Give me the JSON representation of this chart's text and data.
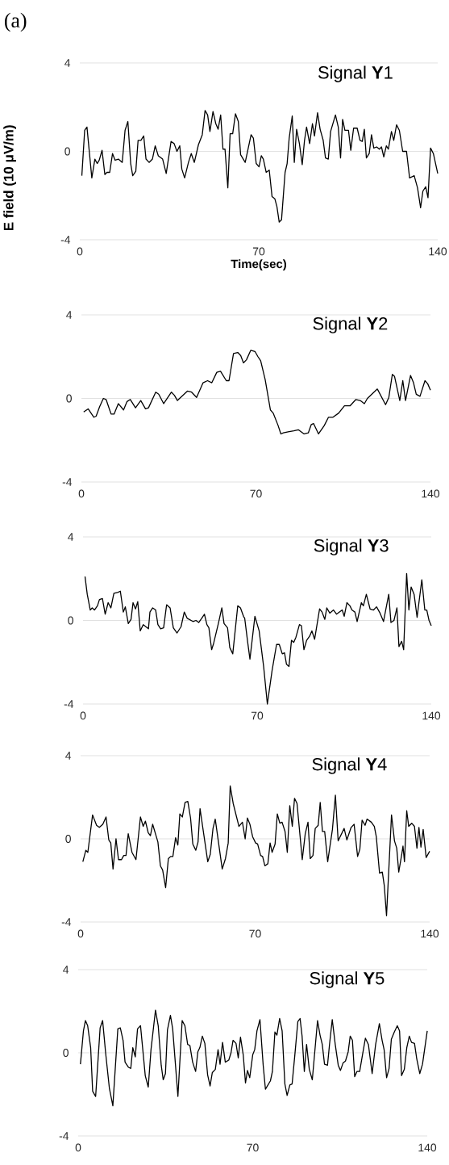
{
  "chart_data": [
    {
      "type": "line",
      "title": "Signal **Y**1",
      "xlabel": "Time(sec)",
      "ylabel": "E field (10 μV/m)",
      "annotations": [
        "(a)"
      ],
      "color": "#000000",
      "xlim": [
        0,
        140
      ],
      "ylim": [
        -4,
        4
      ],
      "xticks": [
        0,
        70,
        140
      ],
      "yticks": [
        -4,
        0,
        4
      ],
      "grid": "y",
      "x": [
        0.8,
        1.9,
        2.8,
        4.7,
        5.9,
        6.8,
        7.6,
        8.7,
        9.8,
        10.6,
        11.7,
        12.8,
        13.8,
        15.1,
        16.6,
        17.7,
        18.8,
        19.9,
        20.7,
        21.9,
        22.8,
        23.9,
        25,
        25.9,
        27.1,
        28.4,
        29.5,
        30.7,
        32.4,
        33.8,
        35.7,
        36.9,
        38,
        39.1,
        39.9,
        41,
        42.5,
        43.6,
        44.8,
        46.4,
        47.9,
        49,
        50,
        50.9,
        52.1,
        53.2,
        54.1,
        55.1,
        56,
        56.8,
        57.9,
        58.8,
        59.8,
        60.9,
        62,
        62.9,
        64.7,
        67,
        67.9,
        69,
        70.1,
        71,
        71.8,
        72.9,
        74.1,
        75.2,
        76.3,
        77.1,
        78,
        78.9,
        80.3,
        81.1,
        81.9,
        83.1,
        83.9,
        84.8,
        85.9,
        87,
        87.9,
        88.7,
        89.9,
        91,
        91.8,
        93,
        94,
        95.2,
        96.1,
        97.2,
        98.1,
        100,
        101.1,
        102,
        102.8,
        103.7,
        105.1,
        106,
        107.1,
        108.5,
        109.6,
        110.5,
        111.3,
        112.1,
        113.2,
        114.1,
        115,
        116.1,
        117.2,
        118,
        118.9,
        119.9,
        120.7,
        121.9,
        122.8,
        123.9,
        125,
        126.3,
        127.8,
        129,
        130.8,
        132.1,
        133.3,
        134.2,
        135.3,
        136.2,
        137.2,
        138.3,
        140
      ],
      "values": [
        -1.1,
        0.95,
        1.1,
        -1.2,
        -0.35,
        -0.55,
        -0.4,
        0.05,
        -1.05,
        -0.95,
        -0.95,
        -0.1,
        -0.4,
        -0.35,
        -0.5,
        0.95,
        1.35,
        -0.55,
        -1.1,
        -0.9,
        0.5,
        0.5,
        0.7,
        -0.35,
        -0.5,
        -0.35,
        0.25,
        -0.2,
        -0.35,
        -1.0,
        0.45,
        0.35,
        0,
        0.25,
        -0.8,
        -1.2,
        -0.5,
        -0.1,
        -0.5,
        0.3,
        0.75,
        1.85,
        1.65,
        0.9,
        1.8,
        1.25,
        1.0,
        1.65,
        0.1,
        0.1,
        -1.65,
        0.8,
        0.8,
        1.7,
        1.35,
        -0.15,
        -0.5,
        0.75,
        0.6,
        -0.55,
        -0.7,
        -0.2,
        -0.35,
        -0.95,
        -0.85,
        -2.05,
        -2.15,
        -2.5,
        -3.2,
        -3.1,
        -0.95,
        -0.55,
        0.6,
        1.6,
        -0.5,
        1.0,
        0.35,
        -0.6,
        0.5,
        1.1,
        0.35,
        1.25,
        0.7,
        1.75,
        1.0,
        0.5,
        -0.3,
        -0.35,
        0.9,
        1.65,
        1.1,
        -0.3,
        1.45,
        0.95,
        0.95,
        0.05,
        1.05,
        1.05,
        0.5,
        0.45,
        1.0,
        -0.3,
        -0.1,
        0.75,
        0.15,
        0.2,
        0.1,
        0.2,
        -0.25,
        0.25,
        0.1,
        0.9,
        0.5,
        1.2,
        0.95,
        0,
        0,
        -1.2,
        -1.1,
        -1.65,
        -2.55,
        -1.8,
        -1.6,
        -2.1,
        0.15,
        -0.1,
        -1.0
      ]
    },
    {
      "type": "line",
      "title": "Signal **Y**2",
      "color": "#000000",
      "xlim": [
        0,
        140
      ],
      "ylim": [
        -4,
        4
      ],
      "xticks": [
        0,
        70,
        140
      ],
      "yticks": [
        -4,
        0,
        4
      ],
      "grid": "y",
      "x": [
        0.9,
        2.7,
        5,
        5.9,
        7.3,
        8.8,
        9.9,
        11.9,
        13.1,
        14.8,
        16.9,
        18.3,
        19.6,
        21.7,
        23.8,
        25.7,
        26.9,
        29.8,
        31,
        33,
        36.1,
        37.3,
        38.5,
        42.5,
        44.2,
        46.2,
        48.8,
        50.6,
        52.3,
        54.3,
        55.8,
        58.1,
        59.2,
        61,
        62.7,
        63.9,
        65,
        66.2,
        67.9,
        69.6,
        70.8,
        71.9,
        73.7,
        75.8,
        76.9,
        78.9,
        80,
        81,
        82.9,
        85.2,
        87,
        89.3,
        91,
        92.2,
        93.1,
        95.1,
        97.4,
        99.1,
        100.9,
        103.2,
        105.5,
        107.8,
        110.1,
        111.8,
        113.5,
        114.7,
        118.7,
        122,
        123.3,
        124.7,
        125.6,
        127.7,
        128.9,
        130,
        132,
        133.2,
        134.3,
        135.8,
        137.8,
        138.9,
        140
      ],
      "values": [
        -0.65,
        -0.5,
        -0.9,
        -0.85,
        -0.4,
        0,
        -0.05,
        -0.75,
        -0.75,
        -0.25,
        -0.55,
        -0.15,
        -0.05,
        -0.45,
        -0.1,
        -0.5,
        -0.45,
        0.3,
        0.2,
        -0.25,
        0.3,
        0.15,
        -0.1,
        0.35,
        0.3,
        0.05,
        0.75,
        0.85,
        0.75,
        1.25,
        1.3,
        0.85,
        0.85,
        2.15,
        2.2,
        2.05,
        1.7,
        1.85,
        2.3,
        2.25,
        2.0,
        1.8,
        0.9,
        -0.55,
        -0.7,
        -1.3,
        -1.7,
        -1.65,
        -1.6,
        -1.55,
        -1.5,
        -1.7,
        -1.65,
        -1.25,
        -1.2,
        -1.7,
        -1.3,
        -0.9,
        -0.9,
        -0.7,
        -0.35,
        -0.35,
        -0.05,
        -0.1,
        -0.25,
        0,
        0.45,
        -0.3,
        0.05,
        1.15,
        1.05,
        -0.1,
        0.85,
        -0.1,
        1.1,
        0.75,
        0.2,
        0.1,
        0.85,
        0.7,
        0.4
      ]
    },
    {
      "type": "line",
      "title": "Signal **Y**3",
      "color": "#000000",
      "xlim": [
        0,
        140
      ],
      "ylim": [
        -4,
        4
      ],
      "xticks": [
        0,
        70,
        140
      ],
      "yticks": [
        -4,
        0,
        4
      ],
      "grid": "y",
      "x": [
        0.8,
        1.7,
        2.9,
        3.7,
        4.6,
        5.8,
        6.6,
        7.8,
        8.9,
        10.1,
        11.2,
        12.4,
        14.1,
        15,
        16.2,
        17,
        18.2,
        19.3,
        20.1,
        21.1,
        22,
        23,
        24.2,
        26.3,
        26.9,
        28,
        29.2,
        30.1,
        31.2,
        32.4,
        33.6,
        35,
        36.3,
        37.8,
        39.4,
        40.7,
        41.9,
        44.2,
        45.4,
        46.5,
        47.7,
        48.8,
        49.8,
        50.6,
        51.7,
        52.5,
        54.4,
        55.8,
        56.7,
        58.1,
        59,
        60.2,
        62.2,
        63.3,
        64.5,
        65,
        66.2,
        67.1,
        69.1,
        70.8,
        72.6,
        74.1,
        76,
        77.8,
        78.9,
        80.1,
        81,
        81.8,
        82.8,
        83.8,
        84.7,
        85.6,
        87,
        87.8,
        88.8,
        89.9,
        91.1,
        92,
        93.1,
        95.1,
        96.1,
        97.2,
        98,
        99.2,
        100.7,
        101.9,
        104.2,
        105,
        106.1,
        107.3,
        108.1,
        109.3,
        110.2,
        111.9,
        112.7,
        113.9,
        115.4,
        116.8,
        118,
        119.4,
        120.8,
        122.9,
        123.8,
        125,
        126.2,
        127,
        128.1,
        128.9,
        130.1,
        131,
        131.9,
        133.1,
        134.3,
        136.2,
        137.4,
        138.2,
        139.1,
        140
      ],
      "values": [
        2.1,
        1.25,
        0.5,
        0.6,
        0.5,
        0.7,
        1.0,
        1.05,
        0.3,
        0.85,
        0.6,
        1.3,
        1.35,
        1.4,
        0.4,
        0.65,
        -0.15,
        0.05,
        0.85,
        0.55,
        0.9,
        -0.5,
        -0.2,
        -0.4,
        0.4,
        0.6,
        0.5,
        -0.2,
        -0.4,
        -0.35,
        0.75,
        0.6,
        -0.35,
        -0.6,
        -0.3,
        0.4,
        0.1,
        -0.05,
        0,
        -0.1,
        0.1,
        0.3,
        -0.2,
        -0.35,
        -1.4,
        -1.1,
        -0.15,
        0.6,
        -0.15,
        -0.35,
        -1.3,
        -1.6,
        0.7,
        0.6,
        0.2,
        0.1,
        -1.05,
        -1.85,
        0.2,
        -0.5,
        -2.2,
        -4.0,
        -2.4,
        -1.15,
        -1.15,
        -1.6,
        -1.55,
        -2.1,
        -2.2,
        -0.95,
        -1.05,
        -0.8,
        -0.2,
        -0.25,
        -1.4,
        -0.95,
        -0.75,
        -0.5,
        -0.9,
        0.55,
        0.4,
        0.05,
        0.6,
        0.35,
        0.5,
        0.3,
        0.5,
        0.2,
        0.85,
        0.7,
        0.5,
        0.4,
        -0.05,
        0.85,
        0.7,
        1.25,
        0.55,
        0.5,
        0.65,
        0.35,
        -0.05,
        1.25,
        -0.1,
        0,
        0.6,
        -1.25,
        -1.0,
        -1.4,
        2.25,
        0.5,
        1.6,
        1.25,
        0.15,
        1.95,
        0.5,
        0.5,
        0,
        -0.25
      ]
    },
    {
      "type": "line",
      "title": "Signal **Y**4",
      "color": "#000000",
      "xlim": [
        0,
        140
      ],
      "ylim": [
        -4,
        4
      ],
      "xticks": [
        0,
        70,
        140
      ],
      "yticks": [
        -4,
        0,
        4
      ],
      "grid": "y",
      "x": [
        0.9,
        2.1,
        2.9,
        4.8,
        6.4,
        7.5,
        8.9,
        10.2,
        11.3,
        12.1,
        13,
        14.2,
        15.2,
        16.4,
        17.3,
        18.2,
        19.1,
        20.6,
        22.2,
        24,
        25.1,
        26,
        27.1,
        28,
        28.9,
        31,
        32,
        32.9,
        34.1,
        35.2,
        36.1,
        37,
        38.1,
        39,
        39.8,
        40.8,
        41.9,
        43,
        44.1,
        45,
        46.2,
        47.1,
        47.9,
        51,
        52,
        53.1,
        54,
        56.8,
        58.1,
        59.2,
        60,
        61.2,
        63.5,
        64.9,
        66,
        66.9,
        67.9,
        69,
        70.2,
        71,
        72.2,
        73,
        73.9,
        75.1,
        76,
        76.8,
        78,
        78.9,
        79.9,
        80.8,
        82,
        82.9,
        83.9,
        84.9,
        85.8,
        86.8,
        88.9,
        90.1,
        91.2,
        92.1,
        93.2,
        94.1,
        95.3,
        96.1,
        97,
        97.9,
        99.1,
        101,
        102.2,
        103.3,
        105.7,
        106.8,
        108.5,
        109.7,
        111.1,
        112,
        112.9,
        114.1,
        114.9,
        116.6,
        117.8,
        118.6,
        119.9,
        121,
        121.8,
        122.7,
        124.7,
        125.9,
        126.8,
        127.6,
        128.8,
        129.3,
        129.9,
        130.8,
        131.6,
        132.8,
        133.9,
        134.9,
        135.7,
        136.5,
        137.4,
        138.6,
        140
      ],
      "values": [
        -1.1,
        -0.55,
        -0.65,
        1.15,
        0.65,
        0.55,
        0.7,
        1.05,
        -0.05,
        -0.2,
        -1.45,
        0,
        -1.0,
        -1.0,
        -0.8,
        -0.8,
        0.25,
        -0.65,
        -1.0,
        1.05,
        0.6,
        0.85,
        0.3,
        0.15,
        0.7,
        -0.15,
        -1.3,
        -1.5,
        -2.35,
        -0.95,
        -0.85,
        -0.85,
        0.05,
        -0.3,
        1.2,
        1.05,
        1.75,
        1.8,
        1.0,
        -0.25,
        -0.55,
        -0.15,
        1.45,
        -1.1,
        -0.75,
        0.5,
        0.95,
        -1.45,
        -0.95,
        -0.2,
        2.55,
        1.7,
        0.6,
        0.8,
        0,
        1.0,
        0.7,
        0.1,
        -0.2,
        -0.25,
        -0.8,
        -0.85,
        -1.3,
        -1.2,
        -0.2,
        -0.65,
        -0.25,
        1.2,
        0.75,
        0.8,
        0.35,
        -0.65,
        1.6,
        0.6,
        1.95,
        1.7,
        -1.0,
        0.25,
        0.8,
        -0.95,
        -0.8,
        0.5,
        0.65,
        1.75,
        0.35,
        0.35,
        -1.1,
        0.45,
        2.1,
        -0.1,
        0.5,
        -0.05,
        0.55,
        0.7,
        -0.85,
        -0.5,
        0.9,
        0.65,
        0.95,
        0.8,
        0.6,
        0.1,
        -1.65,
        -1.6,
        -2.25,
        -3.7,
        1.15,
        -0.1,
        -0.45,
        -1.6,
        -0.75,
        -0.35,
        -1.1,
        1.35,
        0.6,
        0.75,
        0.6,
        -0.45,
        0.55,
        -0.4,
        0.45,
        -0.9,
        -0.6
      ]
    },
    {
      "type": "line",
      "title": "Signal **Y**5",
      "color": "#000000",
      "xlim": [
        0,
        140
      ],
      "ylim": [
        -4,
        4
      ],
      "xticks": [
        0,
        70,
        140
      ],
      "yticks": [
        -4,
        0,
        4
      ],
      "grid": "y",
      "x": [
        0.9,
        2.1,
        2.9,
        3.8,
        5,
        5.8,
        7,
        8.8,
        9.8,
        11,
        12.5,
        13.9,
        15.9,
        16.9,
        18,
        18.8,
        20.2,
        21.1,
        21.9,
        22.9,
        23.8,
        25,
        26.9,
        28.1,
        29.2,
        31,
        32.1,
        33.3,
        34.1,
        35,
        35.8,
        37,
        37.9,
        40,
        41.7,
        42.8,
        43.9,
        44.8,
        45.9,
        47.1,
        48,
        48.8,
        49.8,
        50.8,
        51.9,
        52.9,
        53.8,
        55,
        56.1,
        56.9,
        57.9,
        59,
        60.4,
        61.3,
        62.1,
        63.3,
        64.2,
        65.1,
        66.2,
        67.1,
        67.9,
        68.8,
        70,
        70.8,
        71.7,
        72.9,
        74.2,
        75.1,
        77.1,
        77.9,
        78.9,
        79.7,
        80.8,
        81.8,
        82.9,
        83.8,
        84.9,
        85.8,
        86.9,
        88.1,
        89,
        89.8,
        90.7,
        91.6,
        92.7,
        93.9,
        96,
        97,
        97.9,
        98.8,
        100,
        100.8,
        101.9,
        103.1,
        104.3,
        105.2,
        106.2,
        107.2,
        108.3,
        109.1,
        110,
        110.9,
        111.8,
        112.9,
        114.1,
        115.2,
        116.4,
        117.9,
        119.3,
        120.8,
        121.9,
        122.7,
        123.7,
        124.7,
        125.6,
        126.8,
        128,
        128.9,
        129.7,
        130.8,
        131.8,
        132.8,
        133.7,
        134.9,
        135.8,
        137,
        138.1,
        140
      ],
      "values": [
        -0.55,
        1.05,
        1.55,
        1.3,
        0.25,
        -1.85,
        -2.1,
        1.2,
        1.55,
        0,
        -1.7,
        -2.55,
        1.15,
        1.2,
        0.6,
        -0.45,
        -0.7,
        -0.75,
        0.25,
        -0.2,
        1.15,
        1.3,
        -1.1,
        -1.65,
        0.15,
        2.05,
        1.3,
        -0.6,
        -1.3,
        -1.0,
        1.1,
        1.8,
        1.15,
        -2.1,
        1.55,
        1.3,
        0.4,
        0.35,
        -0.45,
        -0.9,
        0.05,
        0.25,
        0.8,
        0.45,
        -1.05,
        -1.6,
        -0.95,
        -0.8,
        0.15,
        -0.55,
        0.5,
        -0.45,
        -0.35,
        0,
        0.6,
        0.45,
        -0.25,
        0.75,
        -0.1,
        -1.45,
        -0.85,
        -1.2,
        -0.1,
        0.15,
        1.05,
        1.6,
        -0.6,
        -1.75,
        -1.35,
        -0.9,
        1.0,
        0.85,
        1.65,
        1.05,
        -1.5,
        -2.05,
        -1.55,
        -1.5,
        -0.1,
        1.5,
        1.65,
        0.8,
        -0.9,
        0.4,
        -0.8,
        -1.3,
        1.55,
        0.85,
        0.4,
        -0.55,
        -0.6,
        0.4,
        1.6,
        0.4,
        -0.6,
        -0.85,
        -0.5,
        -0.4,
        0.05,
        0.8,
        0.6,
        -1.15,
        -0.9,
        -0.9,
        -0.05,
        0.7,
        0.4,
        -1.0,
        0.4,
        1.4,
        0.6,
        0.15,
        -1.2,
        -0.75,
        0.65,
        1.0,
        1.3,
        1.05,
        -1.1,
        -0.8,
        0.25,
        0.8,
        0.5,
        0.45,
        -0.3,
        -1.0,
        -0.55,
        1.05
      ]
    }
  ]
}
